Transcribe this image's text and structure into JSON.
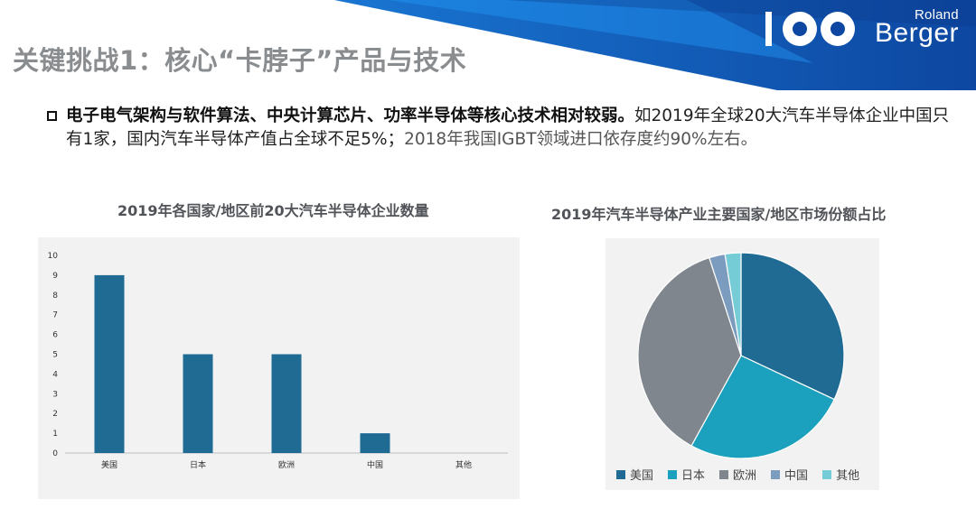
{
  "brand": {
    "roland": "Roland",
    "berger": "Berger",
    "colors": {
      "banner_dark": "#0b3d91",
      "banner_mid": "#1565c0",
      "banner_light": "#1e88e5"
    }
  },
  "title": "关键挑战1：核心“卡脖子”产品与技术",
  "paragraph": {
    "bold": "电子电气架构与软件算法、中央计算芯片、功率半导体等核心技术相对较弱。",
    "normal": "如2019年全球20大汽车半导体企业中国只有1家，国内汽车半导体产值占全球不足5%；",
    "grey": "2018年我国IGBT领域进口依存度约90%左右。"
  },
  "chart_data": [
    {
      "type": "bar",
      "title": "2019年各国家/地区前20大汽车半导体企业数量",
      "categories": [
        "美国",
        "日本",
        "欧洲",
        "中国",
        "其他"
      ],
      "values": [
        9,
        5,
        5,
        1,
        0
      ],
      "ylim": [
        0,
        10
      ],
      "yticks": [
        0,
        1,
        2,
        3,
        4,
        5,
        6,
        7,
        8,
        9,
        10
      ],
      "grid": false,
      "color": "#1f6b94"
    },
    {
      "type": "pie",
      "title": "2019年汽车半导体产业主要国家/地区市场份额占比",
      "labels": [
        "美国",
        "日本",
        "欧洲",
        "中国",
        "其他"
      ],
      "values": [
        32,
        26,
        37,
        2.5,
        2.5
      ],
      "colors": [
        "#1f6b94",
        "#1ba0bd",
        "#7f868d",
        "#7c9cbf",
        "#75ccd6"
      ],
      "legend": "bottom"
    }
  ]
}
